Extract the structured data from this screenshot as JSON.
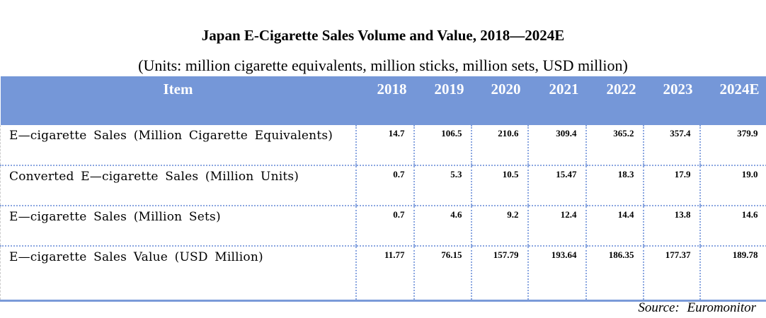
{
  "chart_data": {
    "type": "table",
    "title": "Japan E-Cigarette Sales Volume and Value, 2018—2024E",
    "subtitle": "(Units: million cigarette equivalents, million sticks, million sets, USD million)",
    "columns": [
      "Item",
      "2018",
      "2019",
      "2020",
      "2021",
      "2022",
      "2023",
      "2024E"
    ],
    "rows": [
      {
        "label": "E—cigarette Sales (Million Cigarette Equivalents)",
        "values": [
          "14.7",
          "106.5",
          "210.6",
          "309.4",
          "365.2",
          "357.4",
          "379.9"
        ]
      },
      {
        "label": "Converted E—cigarette Sales (Million Units)",
        "values": [
          "0.7",
          "5.3",
          "10.5",
          "15.47",
          "18.3",
          "17.9",
          "19.0"
        ]
      },
      {
        "label": "E—cigarette Sales (Million Sets)",
        "values": [
          "0.7",
          "4.6",
          "9.2",
          "12.4",
          "14.4",
          "13.8",
          "14.6"
        ]
      },
      {
        "label": "E—cigarette Sales Value (USD Million)",
        "values": [
          "11.77",
          "76.15",
          "157.79",
          "193.64",
          "186.35",
          "177.37",
          "189.78"
        ]
      }
    ],
    "source": "Source:  Euromonitor",
    "header_color": "#7597d8"
  }
}
